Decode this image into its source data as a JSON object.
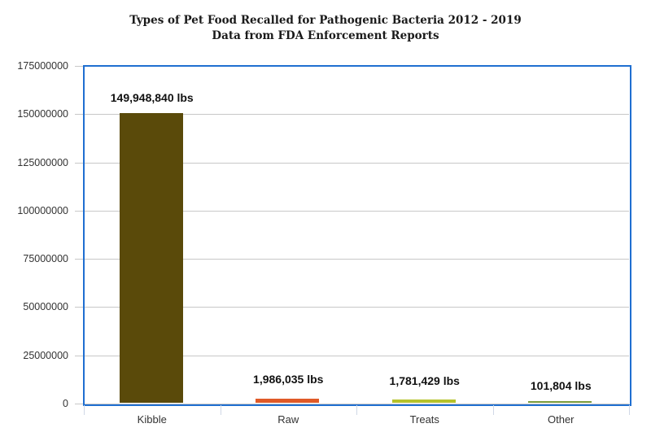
{
  "chart_data": {
    "type": "bar",
    "title": "Types of Pet Food Recalled for Pathogenic Bacteria 2012 - 2019",
    "subtitle": "Data from FDA Enforcement Reports",
    "xlabel": "",
    "ylabel": "",
    "categories": [
      "Kibble",
      "Raw",
      "Treats",
      "Other"
    ],
    "values": [
      149948840,
      1986035,
      1781429,
      101804
    ],
    "data_labels": [
      "149,948,840 lbs",
      "1,986,035 lbs",
      "1,781,429 lbs",
      "101,804 lbs"
    ],
    "colors": [
      "#5a4a0a",
      "#e05a28",
      "#b5c22a",
      "#7a9a3a"
    ],
    "ylim": [
      0,
      175000000
    ],
    "yticks": [
      "0",
      "25000000",
      "50000000",
      "75000000",
      "100000000",
      "125000000",
      "150000000",
      "175000000"
    ],
    "grid": true,
    "legend": "none",
    "frame_color": "#1f6fd1"
  },
  "title_line1": "Types of Pet Food Recalled for Pathogenic Bacteria 2012 - 2019",
  "title_line2": "Data from FDA Enforcement Reports"
}
